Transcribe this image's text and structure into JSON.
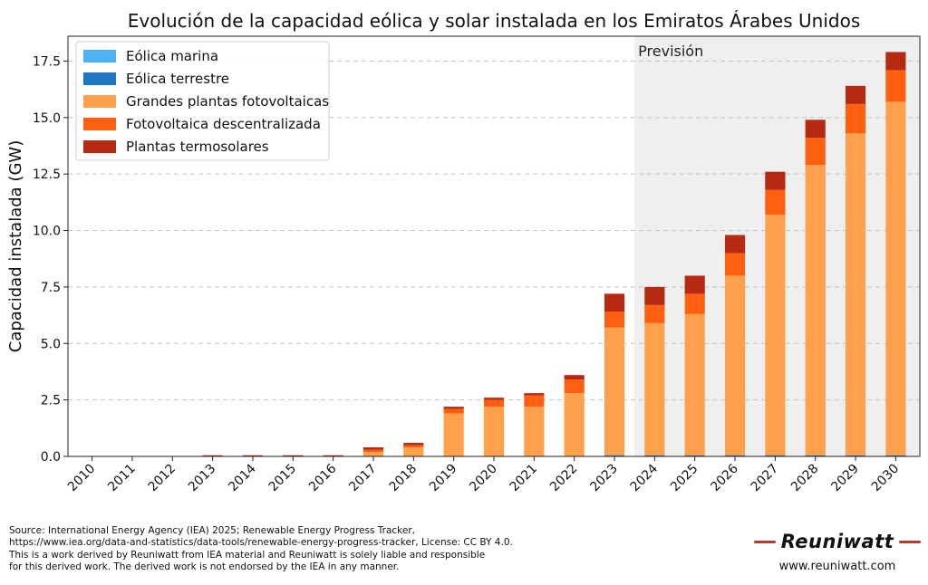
{
  "chart_data": {
    "type": "bar",
    "stacked": true,
    "title": "Evolución de la capacidad eólica y solar instalada en los Emiratos Árabes Unidos",
    "xlabel": "",
    "ylabel": "Capacidad instalada (GW)",
    "ylim": [
      0,
      18.6
    ],
    "yticks": [
      "0.0",
      "2.5",
      "5.0",
      "7.5",
      "10.0",
      "12.5",
      "15.0",
      "17.5"
    ],
    "grid": "horizontal dashed",
    "legend_position": "top-left",
    "forecast_label": "Previsión",
    "forecast_start": "2024",
    "categories": [
      "2010",
      "2011",
      "2012",
      "2013",
      "2014",
      "2015",
      "2016",
      "2017",
      "2018",
      "2019",
      "2020",
      "2021",
      "2022",
      "2023",
      "2024",
      "2025",
      "2026",
      "2027",
      "2028",
      "2029",
      "2030"
    ],
    "series": [
      {
        "name": "Eólica marina",
        "color": "#4db3f5",
        "values": [
          0,
          0,
          0,
          0,
          0,
          0,
          0,
          0,
          0,
          0,
          0,
          0,
          0,
          0,
          0,
          0,
          0,
          0,
          0,
          0,
          0
        ]
      },
      {
        "name": "Eólica terrestre",
        "color": "#1f77c4",
        "values": [
          0,
          0,
          0,
          0,
          0,
          0,
          0,
          0,
          0,
          0,
          0,
          0,
          0,
          0.05,
          0.05,
          0.05,
          0.05,
          0.05,
          0.05,
          0.05,
          0.05
        ]
      },
      {
        "name": "Grandes plantas fotovoltaicas",
        "color": "#ffa04c",
        "values": [
          0,
          0,
          0,
          0,
          0,
          0,
          0,
          0.2,
          0.4,
          1.9,
          2.2,
          2.2,
          2.8,
          5.65,
          5.85,
          6.25,
          7.95,
          10.65,
          12.85,
          14.25,
          15.65
        ]
      },
      {
        "name": "Fotovoltaica descentralizada",
        "color": "#ff6010",
        "values": [
          0,
          0,
          0,
          0,
          0,
          0,
          0,
          0.1,
          0.1,
          0.2,
          0.3,
          0.5,
          0.6,
          0.7,
          0.8,
          0.9,
          1.0,
          1.1,
          1.2,
          1.3,
          1.4
        ]
      },
      {
        "name": "Plantas termosolares",
        "color": "#b52a10",
        "values": [
          0,
          0,
          0,
          0.05,
          0.05,
          0.05,
          0.05,
          0.1,
          0.1,
          0.1,
          0.1,
          0.1,
          0.2,
          0.8,
          0.8,
          0.8,
          0.8,
          0.8,
          0.8,
          0.8,
          0.8
        ]
      }
    ]
  },
  "footer": {
    "source_lines": [
      "Source: International Energy Agency (IEA) 2025; Renewable Energy Progress Tracker,",
      "https://www.iea.org/data-and-statistics/data-tools/renewable-energy-progress-tracker, License: CC BY 4.0.",
      "This is a work derived by Reuniwatt from IEA material and Reuniwatt is solely liable and responsible",
      "for this derived work. The derived work is not endorsed by the IEA in any manner."
    ]
  },
  "brand": {
    "name": "Reuniwatt",
    "url": "www.reuniwatt.com",
    "accent_color": "#c0392b"
  }
}
